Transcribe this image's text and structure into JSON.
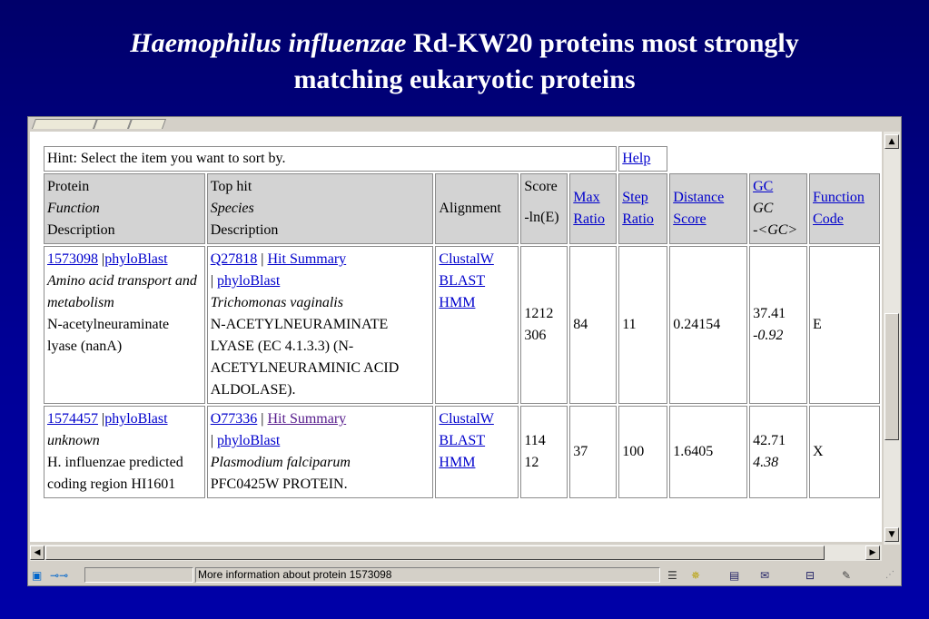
{
  "slide": {
    "title_italic": "Haemophilus influenzae",
    "title_rest": " Rd-KW20 proteins most strongly",
    "title_line2": "matching eukaryotic proteins"
  },
  "table": {
    "hint": "Hint: Select the item you want to sort by.",
    "help": "Help",
    "headers": {
      "protein": "Protein",
      "function": "Function",
      "description": "Description",
      "top_hit": "Top hit",
      "species": "Species",
      "description2": "Description",
      "alignment": "Alignment",
      "score": "Score",
      "score_sub": "-ln(E)",
      "max_ratio_1": "Max",
      "max_ratio_2": "Ratio",
      "step_ratio_1": "Step",
      "step_ratio_2": "Ratio",
      "distance_1": "Distance",
      "distance_2": "Score",
      "gc_link": "GC",
      "gc_it": "GC",
      "gc_delta": "-<GC>",
      "function_code_1": "Function",
      "function_code_2": "Code"
    },
    "rows": [
      {
        "protein_id": "1573098",
        "sep": " |",
        "phyloblast": "phyloBlast",
        "function": "Amino acid transport and metabolism",
        "description": "N-acetylneuraminate lyase (nanA)",
        "hit_id": "Q27818",
        "hit_sep": " | ",
        "hit_summary": "Hit Summary",
        "hit_sep2": "| ",
        "hit_phyloblast": "phyloBlast",
        "species": "Trichomonas vaginalis",
        "hit_description": "N-ACETYLNEURAMINATE LYASE (EC 4.1.3.3) (N-ACETYLNEURAMINIC ACID ALDOLASE).",
        "align_clustal": "ClustalW",
        "align_blast": "BLAST",
        "align_hmm": "HMM",
        "score": "1212",
        "score_ln": "306",
        "max_ratio": "84",
        "step_ratio": "11",
        "distance": "0.24154",
        "gc": "37.41",
        "gc_delta": "-0.92",
        "function_code": "E"
      },
      {
        "protein_id": "1574457",
        "sep": " |",
        "phyloblast": "phyloBlast",
        "function": "unknown",
        "description": "H. influenzae predicted coding region HI1601",
        "hit_id": "O77336",
        "hit_sep": " | ",
        "hit_summary": "Hit Summary",
        "hit_sep2": "| ",
        "hit_phyloblast": "phyloBlast",
        "species": "Plasmodium falciparum",
        "hit_description": "PFC0425W PROTEIN.",
        "align_clustal": "ClustalW",
        "align_blast": "BLAST",
        "align_hmm": "HMM",
        "score": "114",
        "score_ln": "12",
        "max_ratio": "37",
        "step_ratio": "100",
        "distance": "1.6405",
        "gc": "42.71",
        "gc_delta": "4.38",
        "function_code": "X"
      }
    ]
  },
  "statusbar": {
    "text": "More information about protein 1573098",
    "icons": [
      "page-icon",
      "connection-icon",
      "security-icon",
      "plugin-icon",
      "document-icon",
      "mail-icon",
      "composer-icon",
      "pen-icon"
    ]
  },
  "colors": {
    "background": "#000095",
    "link": "#0000cc",
    "visited_link": "#551a8b",
    "header_cell": "#d3d3d3",
    "chrome": "#d4d0c8"
  }
}
